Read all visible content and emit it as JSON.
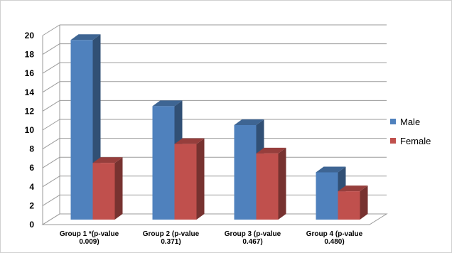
{
  "chart_data": {
    "type": "bar",
    "title": "",
    "xlabel": "",
    "ylabel": "",
    "ylim": [
      0,
      20
    ],
    "y_ticks": [
      0,
      2,
      4,
      6,
      8,
      10,
      12,
      14,
      16,
      18,
      20
    ],
    "categories": [
      [
        "Group 1 *(p-value",
        "0.009)"
      ],
      [
        "Group 2 (p-value",
        "0.371)"
      ],
      [
        "Group 3 (p-value",
        "0.467)"
      ],
      [
        "Group 4 (p-value",
        "0.480)"
      ]
    ],
    "series": [
      {
        "name": "Male",
        "values": [
          19,
          12,
          10,
          5
        ],
        "color": "#4f81bd"
      },
      {
        "name": "Female",
        "values": [
          6,
          8,
          7,
          3
        ],
        "color": "#c0504d"
      }
    ],
    "grid": true,
    "legend_position": "right",
    "style": "3d-clustered-bar"
  }
}
